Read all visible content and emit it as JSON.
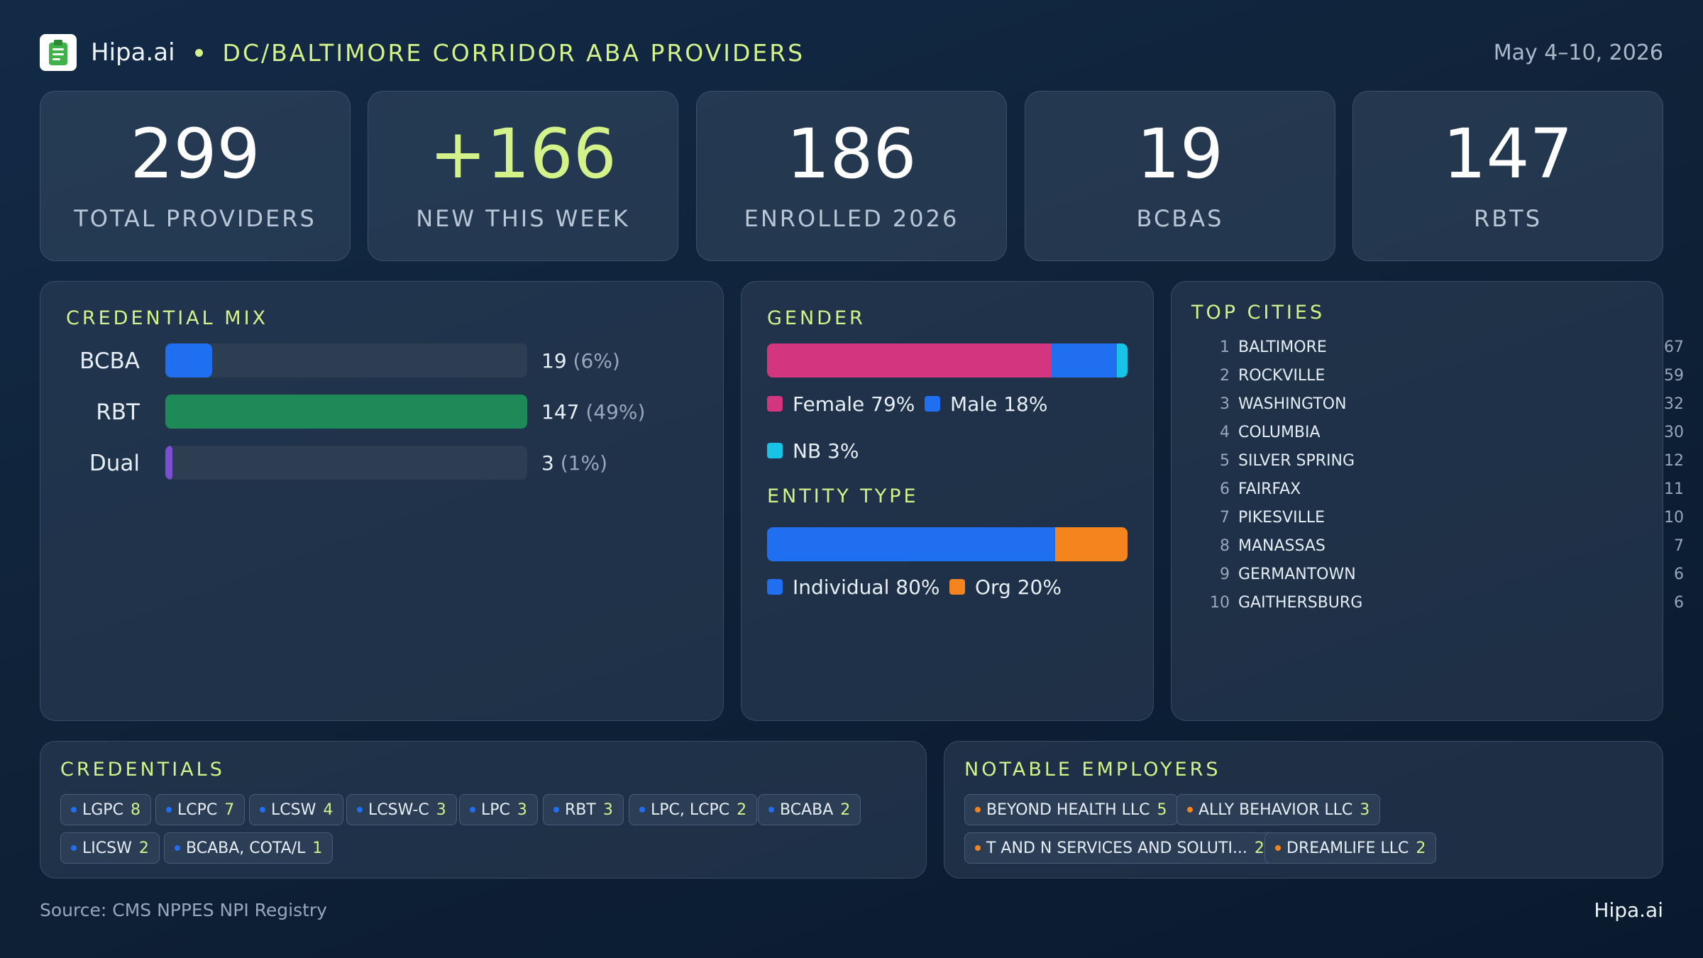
{
  "header": {
    "brand": "Hipa.ai",
    "subtitle": "DC/BALTIMORE CORRIDOR ABA PROVIDERS",
    "date": "May 4–10, 2026",
    "logo_icon": "clipboard-icon"
  },
  "kpis": [
    {
      "value": "299",
      "label": "TOTAL PROVIDERS"
    },
    {
      "value": "+166",
      "label": "NEW THIS WEEK"
    },
    {
      "value": "186",
      "label": "ENROLLED 2026"
    },
    {
      "value": "19",
      "label": "BCBAS"
    },
    {
      "value": "147",
      "label": "RBTS"
    }
  ],
  "credential_mix": {
    "title": "CREDENTIAL MIX",
    "scale_max": 147,
    "rows": [
      {
        "name": "BCBA",
        "count": 19,
        "count_text": "19",
        "pct_text": "(6%)",
        "color": "#1f6ff0"
      },
      {
        "name": "RBT",
        "count": 147,
        "count_text": "147",
        "pct_text": "(49%)",
        "color": "#1e8a57"
      },
      {
        "name": "Dual",
        "count": 3,
        "count_text": "3",
        "pct_text": "(1%)",
        "color": "#7a4fd0"
      }
    ]
  },
  "gender": {
    "title": "GENDER",
    "segments": [
      {
        "label": "Female 79%",
        "value": 79,
        "color": "#d4357f"
      },
      {
        "label": "Male 18%",
        "value": 18,
        "color": "#1f6ff0"
      },
      {
        "label": "NB 3%",
        "value": 3,
        "color": "#19c3e6"
      }
    ]
  },
  "entity_type": {
    "title": "ENTITY TYPE",
    "segments": [
      {
        "label": "Individual 80%",
        "value": 80,
        "color": "#1f6ff0"
      },
      {
        "label": "Org 20%",
        "value": 20,
        "color": "#f5841f"
      }
    ]
  },
  "top_cities": {
    "title": "TOP CITIES",
    "items": [
      {
        "rank": "1",
        "name": "BALTIMORE",
        "count": "67"
      },
      {
        "rank": "2",
        "name": "ROCKVILLE",
        "count": "59"
      },
      {
        "rank": "3",
        "name": "WASHINGTON",
        "count": "32"
      },
      {
        "rank": "4",
        "name": "COLUMBIA",
        "count": "30"
      },
      {
        "rank": "5",
        "name": "SILVER SPRING",
        "count": "12"
      },
      {
        "rank": "6",
        "name": "FAIRFAX",
        "count": "11"
      },
      {
        "rank": "7",
        "name": "PIKESVILLE",
        "count": "10"
      },
      {
        "rank": "8",
        "name": "MANASSAS",
        "count": "7"
      },
      {
        "rank": "9",
        "name": "GERMANTOWN",
        "count": "6"
      },
      {
        "rank": "10",
        "name": "GAITHERSBURG",
        "count": "6"
      }
    ]
  },
  "credentials": {
    "title": "CREDENTIALS",
    "dot_color": "#1f6ff0",
    "chips": [
      {
        "name": "LGPC",
        "count": "8"
      },
      {
        "name": "LCPC",
        "count": "7"
      },
      {
        "name": "LCSW",
        "count": "4"
      },
      {
        "name": "LCSW-C",
        "count": "3"
      },
      {
        "name": "LPC",
        "count": "3"
      },
      {
        "name": "RBT",
        "count": "3"
      },
      {
        "name": "LPC, LCPC",
        "count": "2"
      },
      {
        "name": "BCABA",
        "count": "2"
      },
      {
        "name": "LICSW",
        "count": "2"
      },
      {
        "name": "BCABA, COTA/L",
        "count": "1"
      }
    ]
  },
  "employers": {
    "title": "NOTABLE EMPLOYERS",
    "dot_color": "#f5841f",
    "chips": [
      {
        "name": "BEYOND HEALTH LLC",
        "count": "5"
      },
      {
        "name": "ALLY BEHAVIOR LLC",
        "count": "3"
      },
      {
        "name": "T AND N SERVICES AND SOLUTI...",
        "count": "2"
      },
      {
        "name": "DREAMLIFE LLC",
        "count": "2"
      }
    ]
  },
  "footer": {
    "source": "Source: CMS NPPES NPI Registry",
    "brand": "Hipa.ai"
  },
  "chart_data": [
    {
      "type": "bar",
      "title": "CREDENTIAL MIX",
      "categories": [
        "BCBA",
        "RBT",
        "Dual"
      ],
      "values": [
        19,
        147,
        3
      ],
      "data_labels": [
        "19 (6%)",
        "147 (49%)",
        "3 (1%)"
      ]
    },
    {
      "type": "bar",
      "title": "GENDER",
      "stacked": true,
      "categories": [
        "Female",
        "Male",
        "NB"
      ],
      "values": [
        79,
        18,
        3
      ]
    },
    {
      "type": "bar",
      "title": "ENTITY TYPE",
      "stacked": true,
      "categories": [
        "Individual",
        "Org"
      ],
      "values": [
        80,
        20
      ]
    },
    {
      "type": "table",
      "title": "TOP CITIES",
      "categories": [
        "BALTIMORE",
        "ROCKVILLE",
        "WASHINGTON",
        "COLUMBIA",
        "SILVER SPRING",
        "FAIRFAX",
        "PIKESVILLE",
        "MANASSAS",
        "GERMANTOWN",
        "GAITHERSBURG"
      ],
      "values": [
        67,
        59,
        32,
        30,
        12,
        11,
        10,
        7,
        6,
        6
      ]
    }
  ]
}
